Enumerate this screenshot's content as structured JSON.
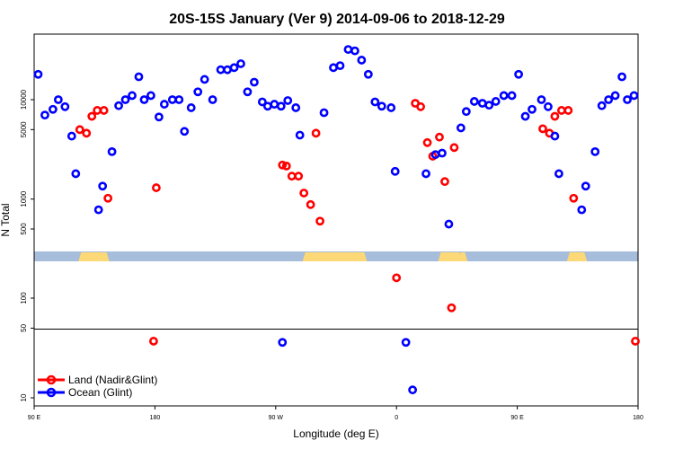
{
  "chart_data": {
    "type": "scatter",
    "title": "20S-15S January (Ver 9)   2014-09-06 to 2018-12-29",
    "xlabel": "Longitude (deg E)",
    "ylabel": "N Total",
    "x_tick_labels": [
      "90 E",
      "180",
      "90 W",
      "0",
      "90 E",
      "180"
    ],
    "x_tick_values": [
      90,
      180,
      270,
      360,
      450,
      540
    ],
    "upper_y_ticks": [
      500,
      1000,
      5000,
      10000
    ],
    "lower_y_ticks": [
      10,
      50,
      100
    ],
    "upper_ylim": [
      300,
      40000
    ],
    "lower_ylim": [
      9,
      250
    ],
    "colors": {
      "land": "#ff0000",
      "ocean": "#0000ff",
      "sea_strip": "#a6bddb",
      "land_strip": "#fdd876"
    },
    "strip_land_segments": [
      [
        123,
        146
      ],
      [
        290,
        338
      ],
      [
        391,
        409
      ],
      [
        406,
        413
      ],
      [
        487,
        502
      ]
    ],
    "series": [
      {
        "name": "Land (Nadir&Glint)",
        "color": "#ff0000",
        "upper": [
          [
            124,
            5000
          ],
          [
            129,
            4600
          ],
          [
            133,
            6800
          ],
          [
            137,
            7800
          ],
          [
            142,
            7800
          ],
          [
            145,
            1020
          ],
          [
            181,
            1300
          ],
          [
            275,
            2200
          ],
          [
            278,
            2150
          ],
          [
            282,
            1700
          ],
          [
            287,
            1700
          ],
          [
            291,
            1150
          ],
          [
            296,
            880
          ],
          [
            300,
            4600
          ],
          [
            303,
            600
          ],
          [
            374,
            9200
          ],
          [
            378,
            8500
          ],
          [
            383,
            3700
          ],
          [
            387,
            2700
          ],
          [
            392,
            4200
          ],
          [
            396,
            1500
          ],
          [
            403,
            3300
          ],
          [
            469,
            5100
          ],
          [
            474,
            4600
          ],
          [
            478,
            6800
          ],
          [
            483,
            7800
          ],
          [
            488,
            7800
          ],
          [
            492,
            1020
          ]
        ],
        "lower": [
          [
            179,
            37
          ],
          [
            360,
            160
          ],
          [
            401,
            80
          ],
          [
            538,
            37
          ]
        ]
      },
      {
        "name": "Ocean (Glint)",
        "color": "#0000ff",
        "upper": [
          [
            93,
            18000
          ],
          [
            98,
            7000
          ],
          [
            104,
            8000
          ],
          [
            108,
            10000
          ],
          [
            113,
            8500
          ],
          [
            118,
            4300
          ],
          [
            121,
            1800
          ],
          [
            138,
            780
          ],
          [
            141,
            1350
          ],
          [
            148,
            3000
          ],
          [
            153,
            8700
          ],
          [
            158,
            10000
          ],
          [
            163,
            11000
          ],
          [
            168,
            17000
          ],
          [
            172,
            10000
          ],
          [
            177,
            11000
          ],
          [
            183,
            6700
          ],
          [
            187,
            9000
          ],
          [
            193,
            10000
          ],
          [
            198,
            10000
          ],
          [
            202,
            4800
          ],
          [
            207,
            8300
          ],
          [
            212,
            12000
          ],
          [
            217,
            16000
          ],
          [
            223,
            10000
          ],
          [
            229,
            20000
          ],
          [
            234,
            20000
          ],
          [
            239,
            21000
          ],
          [
            244,
            23000
          ],
          [
            249,
            12000
          ],
          [
            254,
            15000
          ],
          [
            260,
            9500
          ],
          [
            264,
            8600
          ],
          [
            269,
            9000
          ],
          [
            274,
            8600
          ],
          [
            279,
            9800
          ],
          [
            285,
            8300
          ],
          [
            288,
            4400
          ],
          [
            306,
            7400
          ],
          [
            313,
            21000
          ],
          [
            318,
            22000
          ],
          [
            324,
            32000
          ],
          [
            329,
            31000
          ],
          [
            334,
            25000
          ],
          [
            339,
            18000
          ],
          [
            344,
            9500
          ],
          [
            349,
            8600
          ],
          [
            356,
            8300
          ],
          [
            359,
            1900
          ],
          [
            382,
            1800
          ],
          [
            389,
            2800
          ],
          [
            394,
            2900
          ],
          [
            399,
            560
          ],
          [
            408,
            5200
          ],
          [
            412,
            7600
          ],
          [
            418,
            9600
          ],
          [
            424,
            9200
          ],
          [
            429,
            8800
          ],
          [
            434,
            9600
          ],
          [
            440,
            11000
          ],
          [
            446,
            11000
          ],
          [
            451,
            18000
          ],
          [
            456,
            6800
          ],
          [
            461,
            8000
          ],
          [
            468,
            10000
          ],
          [
            473,
            8500
          ],
          [
            478,
            4300
          ],
          [
            481,
            1800
          ],
          [
            498,
            780
          ],
          [
            501,
            1350
          ],
          [
            508,
            3000
          ],
          [
            513,
            8700
          ],
          [
            518,
            10000
          ],
          [
            523,
            11000
          ],
          [
            528,
            17000
          ],
          [
            532,
            10000
          ],
          [
            537,
            11000
          ]
        ],
        "lower": [
          [
            275,
            36
          ],
          [
            367,
            36
          ],
          [
            372,
            12
          ]
        ]
      }
    ],
    "legend": {
      "position": "bottom-left"
    }
  }
}
